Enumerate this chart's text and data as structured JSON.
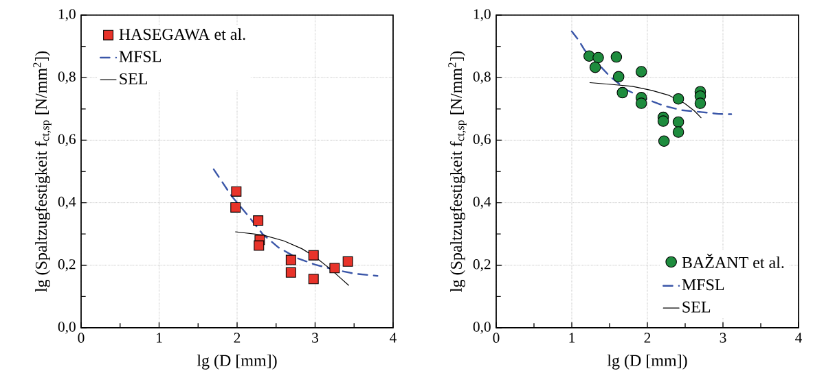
{
  "chart_data": [
    {
      "type": "scatter",
      "xlabel": "lg (D [mm])",
      "ylabel": "lg (Spaltzugfestigkeit f$_{ct,sp}$ [N/mm$^{2}$])",
      "xlim": [
        0,
        4
      ],
      "ylim": [
        0,
        1
      ],
      "xticks": [
        0,
        {
          "value": 0.5,
          "label": null
        },
        1,
        {
          "value": 1.5,
          "label": null
        },
        2,
        {
          "value": 2.5,
          "label": null
        },
        3,
        {
          "value": 3.5,
          "label": null
        },
        4
      ],
      "yticks": [
        {
          "value": 0,
          "label": "0,0"
        },
        {
          "value": 0.1,
          "label": null
        },
        {
          "value": 0.2,
          "label": "0,2"
        },
        {
          "value": 0.3,
          "label": null
        },
        {
          "value": 0.4,
          "label": "0,4"
        },
        {
          "value": 0.5,
          "label": null
        },
        {
          "value": 0.6,
          "label": "0,6"
        },
        {
          "value": 0.7,
          "label": null
        },
        {
          "value": 0.8,
          "label": "0,8"
        },
        {
          "value": 0.9,
          "label": null
        },
        {
          "value": 1,
          "label": "1,0"
        }
      ],
      "grid": true,
      "legend": "top left",
      "series": [
        {
          "name": "HASEGAWA et al.",
          "marker": "square",
          "color": "#e8332a",
          "x": [
            1.99,
            1.98,
            2.27,
            2.29,
            2.28,
            2.69,
            2.69,
            2.98,
            2.98,
            3.25,
            3.42
          ],
          "values": [
            0.436,
            0.385,
            0.343,
            0.281,
            0.263,
            0.217,
            0.177,
            0.232,
            0.156,
            0.191,
            0.212
          ]
        },
        {
          "name": "MFSL",
          "type": "line",
          "line_style": "dashed",
          "color": "#3a56a8",
          "x": [
            1.7,
            1.93,
            2.13,
            2.33,
            2.53,
            2.77,
            3.0,
            3.27,
            3.51,
            3.8
          ],
          "values": [
            0.507,
            0.421,
            0.362,
            0.299,
            0.257,
            0.223,
            0.202,
            0.185,
            0.173,
            0.166
          ]
        },
        {
          "name": "SEL",
          "type": "line",
          "line_style": "solid",
          "color": "#000000",
          "x": [
            1.98,
            2.33,
            2.6,
            2.83,
            3.0,
            3.21,
            3.34,
            3.43
          ],
          "values": [
            0.307,
            0.297,
            0.278,
            0.253,
            0.227,
            0.185,
            0.156,
            0.136
          ]
        }
      ]
    },
    {
      "type": "scatter",
      "xlabel": "lg (D [mm])",
      "ylabel": "lg (Spaltzugfestigkeit f$_{ct,sp}$ [N/mm$^{2}$])",
      "xlim": [
        0,
        4
      ],
      "ylim": [
        0,
        1
      ],
      "xticks": [
        0,
        {
          "value": 0.5,
          "label": null
        },
        1,
        {
          "value": 1.5,
          "label": null
        },
        2,
        {
          "value": 2.5,
          "label": null
        },
        3,
        {
          "value": 3.5,
          "label": null
        },
        4
      ],
      "yticks": [
        {
          "value": 0,
          "label": "0,0"
        },
        {
          "value": 0.1,
          "label": null
        },
        {
          "value": 0.2,
          "label": "0,2"
        },
        {
          "value": 0.3,
          "label": null
        },
        {
          "value": 0.4,
          "label": "0,4"
        },
        {
          "value": 0.5,
          "label": null
        },
        {
          "value": 0.6,
          "label": "0,6"
        },
        {
          "value": 0.7,
          "label": null
        },
        {
          "value": 0.8,
          "label": "0,8"
        },
        {
          "value": 0.9,
          "label": null
        },
        {
          "value": 1,
          "label": "1,0"
        }
      ],
      "grid": true,
      "legend": "bottom right",
      "series": [
        {
          "name": "BAŽANT et al.",
          "marker": "circle",
          "color": "#1e8c3e",
          "x": [
            1.23,
            1.35,
            1.31,
            1.59,
            1.62,
            1.67,
            1.92,
            1.92,
            1.92,
            2.21,
            2.21,
            2.22,
            2.41,
            2.41,
            2.41,
            2.7,
            2.7,
            2.7
          ],
          "values": [
            0.869,
            0.864,
            0.833,
            0.866,
            0.803,
            0.752,
            0.819,
            0.736,
            0.718,
            0.673,
            0.661,
            0.597,
            0.732,
            0.658,
            0.626,
            0.755,
            0.741,
            0.718
          ]
        },
        {
          "name": "MFSL",
          "type": "line",
          "line_style": "dashed",
          "color": "#3a56a8",
          "x": [
            1.0,
            1.09,
            1.17,
            1.34,
            1.5,
            1.73,
            1.99,
            2.22,
            2.45,
            2.71,
            2.94,
            3.11
          ],
          "values": [
            0.948,
            0.92,
            0.888,
            0.846,
            0.805,
            0.76,
            0.731,
            0.71,
            0.696,
            0.69,
            0.684,
            0.683
          ]
        },
        {
          "name": "SEL",
          "type": "line",
          "line_style": "solid",
          "color": "#000000",
          "x": [
            1.24,
            1.54,
            1.8,
            2.06,
            2.29,
            2.49,
            2.62,
            2.71
          ],
          "values": [
            0.784,
            0.778,
            0.772,
            0.759,
            0.743,
            0.718,
            0.694,
            0.672
          ]
        }
      ]
    }
  ]
}
